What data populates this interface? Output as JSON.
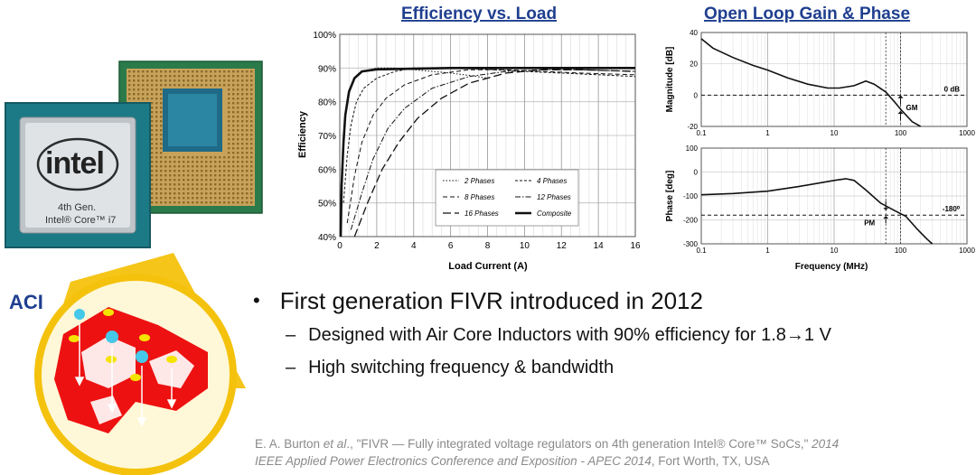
{
  "colors": {
    "accent_blue": "#1f3f8f",
    "gold": "#f4c20d",
    "inductor_red": "#ee1111",
    "cyan": "#46c8e8",
    "yellow": "#f5e400"
  },
  "chip": {
    "brand": "intel",
    "line1": "4th Gen.",
    "line2": "Intel® Core™ i7"
  },
  "aci_label": "ACI",
  "bullets": {
    "main": "First generation FIVR introduced in 2012",
    "sub": [
      {
        "dash": "–",
        "prefix": "Designed with Air Core Inductors with 90% efficiency for 1.8",
        "arrow": "→",
        "suffix": "1 V"
      },
      {
        "dash": "–",
        "text": "High switching frequency & bandwidth"
      }
    ],
    "bullet_symbol": "•"
  },
  "citation": {
    "line1_a": "E. A. Burton ",
    "line1_b": "et al",
    "line1_c": "., \"FIVR — Fully integrated voltage regulators on 4th generation Intel® Core™ SoCs,\" ",
    "line1_d": "2014",
    "line2_a": "IEEE Applied Power Electronics Conference and Exposition - APEC 2014",
    "line2_b": ", Fort Worth, TX, USA"
  },
  "chart_data": [
    {
      "type": "line",
      "title": "Efficiency vs. Load",
      "xlabel": "Load Current (A)",
      "ylabel": "Efficiency",
      "xlim": [
        0,
        16
      ],
      "ylim": [
        40,
        100
      ],
      "x_ticks": [
        "0",
        "2",
        "4",
        "6",
        "8",
        "10",
        "12",
        "14",
        "16"
      ],
      "y_ticks": [
        "40%",
        "50%",
        "60%",
        "70%",
        "80%",
        "90%",
        "100%"
      ],
      "grid": true,
      "legend": "bottom-center",
      "series": [
        {
          "name": "2 Phases",
          "style": "dotted",
          "x": [
            0.1,
            0.2,
            0.3,
            0.5,
            0.8,
            1.2,
            2,
            3,
            4,
            5,
            6,
            7,
            8
          ],
          "y": [
            52,
            68,
            76,
            83,
            87,
            89,
            90,
            90,
            89.5,
            89,
            88.5,
            87.8,
            87
          ]
        },
        {
          "name": "4 Phases",
          "style": "dashed-fine",
          "x": [
            0.2,
            0.4,
            0.6,
            0.9,
            1.3,
            2,
            3,
            4,
            6,
            8,
            10,
            12,
            14,
            16
          ],
          "y": [
            50,
            64,
            73,
            80,
            84,
            87,
            89,
            90,
            90,
            89.6,
            89,
            88.5,
            88,
            87.5
          ]
        },
        {
          "name": "8 Phases",
          "style": "dashed",
          "x": [
            0.4,
            0.8,
            1.2,
            1.8,
            2.5,
            3.5,
            5,
            7,
            9,
            11,
            13,
            16
          ],
          "y": [
            44,
            58,
            68,
            76,
            81,
            85,
            88,
            89.5,
            89.5,
            89,
            88.5,
            88
          ]
        },
        {
          "name": "12 Phases",
          "style": "dash-dot",
          "x": [
            0.6,
            1.2,
            1.8,
            2.6,
            3.5,
            5,
            7,
            9,
            11,
            13,
            16
          ],
          "y": [
            42,
            53,
            63,
            72,
            78,
            84,
            87.5,
            89,
            89.5,
            89.5,
            89
          ]
        },
        {
          "name": "16 Phases",
          "style": "long-dash",
          "x": [
            0.8,
            1.5,
            2.3,
            3.2,
            4.2,
            5.5,
            7,
            9,
            11,
            13,
            16
          ],
          "y": [
            40,
            50,
            60,
            68,
            75,
            81,
            85.5,
            88.5,
            89.5,
            89.5,
            89
          ]
        },
        {
          "name": "Composite",
          "style": "solid-bold",
          "x": [
            0.05,
            0.1,
            0.2,
            0.3,
            0.5,
            0.8,
            1.2,
            2,
            4,
            6,
            8,
            10,
            12,
            14,
            16
          ],
          "y": [
            40,
            55,
            68,
            76,
            83,
            87,
            89,
            89.6,
            89.8,
            90,
            90,
            90,
            90,
            90,
            90
          ]
        }
      ]
    },
    {
      "type": "line",
      "title": "Open Loop Gain & Phase",
      "xlabel": "",
      "ylabel": "Magnitude [dB]",
      "xscale": "log",
      "xlim": [
        0.1,
        1000
      ],
      "ylim": [
        -20,
        40
      ],
      "x_ticks": [
        "0.1",
        "1",
        "10",
        "100",
        "1000"
      ],
      "y_ticks": [
        "-20",
        "0",
        "20",
        "40"
      ],
      "annotations": [
        "0 dB",
        "GM"
      ],
      "series": [
        {
          "x": [
            0.1,
            0.15,
            0.3,
            0.6,
            1,
            2,
            4,
            8,
            12,
            20,
            30,
            40,
            60,
            80,
            100,
            150,
            200
          ],
          "y": [
            36,
            30,
            24,
            19,
            16,
            11,
            7,
            4.5,
            4.5,
            6,
            9,
            7,
            2,
            -4,
            -9,
            -17,
            -22
          ]
        }
      ]
    },
    {
      "type": "line",
      "title": "",
      "xlabel": "Frequency (MHz)",
      "ylabel": "Phase [deg]",
      "xscale": "log",
      "xlim": [
        0.1,
        1000
      ],
      "ylim": [
        -300,
        100
      ],
      "x_ticks": [
        "0.1",
        "1",
        "10",
        "100",
        "1000"
      ],
      "y_ticks": [
        "-300",
        "-200",
        "-100",
        "0",
        "100"
      ],
      "annotations": [
        "-180⁰",
        "PM"
      ],
      "series": [
        {
          "x": [
            0.1,
            0.3,
            1,
            3,
            10,
            15,
            20,
            30,
            50,
            80,
            120,
            180,
            250,
            300
          ],
          "y": [
            -95,
            -90,
            -80,
            -60,
            -35,
            -28,
            -35,
            -75,
            -130,
            -160,
            -185,
            -240,
            -280,
            -300
          ]
        }
      ]
    }
  ]
}
